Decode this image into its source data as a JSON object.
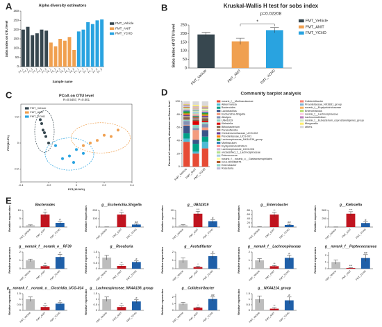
{
  "chart_data": [
    {
      "type": "bar",
      "panel_label": "A",
      "title": "Alpha diversity estimators",
      "ylabel": "Sobs index on OTU level",
      "xlabel": "Sample name",
      "categories": [
        "FV_1",
        "FV_2",
        "FV_3",
        "FV_4",
        "FV_5",
        "FV_6",
        "FA_1",
        "FA_2",
        "FA_3",
        "FA_4",
        "FA_5",
        "FA_6",
        "FY_1",
        "FY_2",
        "FY_3",
        "FY_4",
        "FY_5",
        "FY_6"
      ],
      "series": [
        {
          "name": "FMT_Vehicle",
          "color": "#37474f",
          "values": [
            200,
            215,
            170,
            180,
            200,
            195,
            null,
            null,
            null,
            null,
            null,
            null,
            null,
            null,
            null,
            null,
            null,
            null
          ]
        },
        {
          "name": "FMT_ANIT",
          "color": "#f0a050",
          "values": [
            null,
            null,
            null,
            null,
            null,
            null,
            130,
            110,
            150,
            140,
            160,
            90,
            null,
            null,
            null,
            null,
            null,
            null
          ]
        },
        {
          "name": "FMT_YCHD",
          "color": "#29a3e0",
          "values": [
            null,
            null,
            null,
            null,
            null,
            null,
            null,
            null,
            null,
            null,
            null,
            null,
            190,
            200,
            240,
            230,
            250,
            255
          ]
        }
      ],
      "ylim": [
        0,
        300
      ],
      "yticks": [
        0,
        50,
        100,
        150,
        200,
        250,
        300
      ],
      "legend": "right"
    },
    {
      "type": "bar",
      "panel_label": "B",
      "title": "Kruskal-Wallis H test for sobs index",
      "subtitle": "p=0.02208",
      "ylabel": "Sobs index of OTU level",
      "categories": [
        "FMT_Vehicle",
        "FMT_ANIT",
        "FMT_YCHD"
      ],
      "values": [
        195,
        155,
        220
      ],
      "errors": [
        12,
        18,
        15
      ],
      "colors": [
        "#37474f",
        "#f0a050",
        "#29a3e0"
      ],
      "significance": "*",
      "ylim": [
        0,
        250
      ],
      "yticks": [
        0,
        50,
        100,
        150,
        200,
        250
      ],
      "legend": "right"
    },
    {
      "type": "scatter",
      "panel_label": "C",
      "title": "PCoA on OTU level",
      "subtitle": "R=0.5457, P=0.001",
      "xlabel": "PC1(16.94%)",
      "ylabel": "PC2(12.5%)",
      "series": [
        {
          "name": "FMT_Vehicle",
          "color": "#37474f",
          "x": [
            -0.25,
            -0.24,
            -0.22,
            -0.26,
            -0.2,
            -0.23
          ],
          "y": [
            0.15,
            0.1,
            0.05,
            0.18,
            0.0,
            0.08
          ]
        },
        {
          "name": "FMT_ANIT",
          "color": "#f0a050",
          "x": [
            0.05,
            0.15,
            0.25,
            0.3,
            0.1,
            0.2
          ],
          "y": [
            -0.02,
            0.02,
            0.05,
            0.1,
            0.0,
            0.06
          ]
        },
        {
          "name": "FMT_YCHD",
          "color": "#29a3e0",
          "x": [
            -0.05,
            0.0,
            -0.1,
            0.05,
            -0.02,
            -0.15
          ],
          "y": [
            -0.1,
            -0.05,
            -0.12,
            -0.08,
            -0.15,
            -0.02
          ]
        }
      ],
      "xlim": [
        -0.4,
        0.4
      ],
      "xticks": [
        -0.4,
        -0.2,
        0,
        0.2,
        0.4
      ],
      "ylim": [
        -0.3,
        0.3
      ],
      "yticks": [
        -0.2,
        0,
        0.2
      ],
      "legend": "top-left"
    },
    {
      "type": "stacked_bar",
      "panel_label": "D",
      "title": "Community barplot analysis",
      "ylabel": "Percent of community abundance on Genus level",
      "categories": [
        "FMT_Vehicle",
        "FMT_ANIT",
        "FMT_YCHD"
      ],
      "ylim": [
        0,
        100
      ],
      "yticks": [
        0,
        20,
        40,
        60,
        80,
        100
      ],
      "series": [
        {
          "name": "norank_f__Muribaculaceae",
          "color": "#e64b35",
          "values": [
            38,
            20,
            28
          ]
        },
        {
          "name": "Akkermansia",
          "color": "#4dbbd5",
          "values": [
            5,
            3,
            10
          ]
        },
        {
          "name": "Bacteroides",
          "color": "#00a087",
          "values": [
            8,
            12,
            8
          ]
        },
        {
          "name": "Lactobacillus",
          "color": "#3c5488",
          "values": [
            12,
            6,
            10
          ]
        },
        {
          "name": "Escherichia-Shigella",
          "color": "#f39b7f",
          "values": [
            1,
            15,
            4
          ]
        },
        {
          "name": "Alistipes",
          "color": "#8491b4",
          "values": [
            6,
            3,
            5
          ]
        },
        {
          "name": "UBA1819",
          "color": "#91d1c2",
          "values": [
            2,
            5,
            3
          ]
        },
        {
          "name": "Klebsiella",
          "color": "#dc0000",
          "values": [
            0.5,
            6,
            2
          ]
        },
        {
          "name": "Bifidobacterium",
          "color": "#7e6148",
          "values": [
            3,
            2,
            4
          ]
        },
        {
          "name": "Parasutterella",
          "color": "#b09c85",
          "values": [
            2,
            2,
            2
          ]
        },
        {
          "name": "Christensenellaceae_UCG-002",
          "color": "#6a3d9a",
          "values": [
            2,
            1,
            2
          ]
        },
        {
          "name": "Prevotellaceae_UCG-001",
          "color": "#ff7f00",
          "values": [
            2,
            1,
            2
          ]
        },
        {
          "name": "Lachnospiraceae_NK4A136_group",
          "color": "#33a02c",
          "values": [
            3,
            1,
            2
          ]
        },
        {
          "name": "Muribaculum",
          "color": "#1f78b4",
          "values": [
            1.5,
            1,
            1.5
          ]
        },
        {
          "name": "Erysipelatoclostridium",
          "color": "#fb9a99",
          "values": [
            1,
            2,
            1
          ]
        },
        {
          "name": "Lachnospiraceae_UCG-006",
          "color": "#cab2d6",
          "values": [
            1,
            0.5,
            1
          ]
        },
        {
          "name": "unclassified_f__Lachnospiraceae",
          "color": "#b2df8a",
          "values": [
            1,
            1,
            1
          ]
        },
        {
          "name": "Enterococcus",
          "color": "#a6cee3",
          "values": [
            0.5,
            3,
            1
          ]
        },
        {
          "name": "norank_f__norank_o__Gastranaerophilales",
          "color": "#ffff99",
          "values": [
            1,
            0.5,
            1
          ]
        },
        {
          "name": "GCA-900066575",
          "color": "#b15928",
          "values": [
            1,
            0.5,
            0.5
          ]
        },
        {
          "name": "Enterobacter",
          "color": "#8dd3c7",
          "values": [
            0.2,
            2,
            0.5
          ]
        },
        {
          "name": "Roseburia",
          "color": "#bebada",
          "values": [
            1,
            0.5,
            0.5
          ]
        },
        {
          "name": "Colidextribacter",
          "color": "#fb8072",
          "values": [
            1,
            0.5,
            1
          ]
        },
        {
          "name": "Prevotellaceae_NK3B31_group",
          "color": "#80b1d3",
          "values": [
            1,
            0.5,
            0.5
          ]
        },
        {
          "name": "norank_f__Erysipelotrichaceae",
          "color": "#fdb462",
          "values": [
            0.5,
            1,
            0.5
          ]
        },
        {
          "name": "Enterorhabdus",
          "color": "#b3de69",
          "values": [
            0.5,
            0.5,
            0.5
          ]
        },
        {
          "name": "norank_f__Lachnospiraceae",
          "color": "#fccde5",
          "values": [
            1,
            0.5,
            0.5
          ]
        },
        {
          "name": "Lachnoclostridium",
          "color": "#bc80bd",
          "values": [
            0.5,
            1,
            0.5
          ]
        },
        {
          "name": "norank_f__Eubacterium_coprostanoligenes_group",
          "color": "#ccebc5",
          "values": [
            1,
            0.5,
            0.5
          ]
        },
        {
          "name": "Morganella",
          "color": "#ffed6f",
          "values": [
            0,
            2,
            0.5
          ]
        },
        {
          "name": "others",
          "color": "#d9d9d9",
          "values": [
            1.8,
            5.5,
            5.5
          ]
        }
      ]
    },
    {
      "type": "bar",
      "panel_label": "E",
      "title": "Bacteroides",
      "ylabel": "Relative expression",
      "categories": [
        "FMT_Vehicle",
        "FMT_ANIT",
        "FMT_YCHD"
      ],
      "values": [
        1,
        7.5,
        2.5
      ],
      "errors": [
        0.3,
        1.5,
        0.8
      ],
      "annotations": [
        null,
        "**",
        "#"
      ],
      "colors": [
        "#bdbdbd",
        "#c0141f",
        "#1f5fa8"
      ],
      "ylim": [
        0,
        10
      ],
      "yticks": [
        0,
        5,
        10
      ]
    },
    {
      "type": "bar",
      "title": "g__Escherichia-Shigella",
      "ylabel": "Relative expression",
      "categories": [
        "FMT_Vehicle",
        "FMT_ANIT",
        "FMT_YCHD"
      ],
      "values": [
        1,
        150,
        30
      ],
      "errors": [
        0.5,
        25,
        8
      ],
      "annotations": [
        null,
        "**",
        "##"
      ],
      "colors": [
        "#bdbdbd",
        "#c0141f",
        "#1f5fa8"
      ],
      "ylim": [
        0,
        200
      ],
      "yticks": [
        0,
        100,
        200
      ]
    },
    {
      "type": "bar",
      "title": "g__UBA1819",
      "ylabel": "Relative expression",
      "categories": [
        "FMT_Vehicle",
        "FMT_ANIT",
        "FMT_YCHD"
      ],
      "values": [
        1,
        8,
        3.5
      ],
      "errors": [
        0.4,
        1.5,
        1
      ],
      "annotations": [
        null,
        "***",
        "#"
      ],
      "colors": [
        "#bdbdbd",
        "#c0141f",
        "#1f5fa8"
      ],
      "ylim": [
        0,
        10
      ],
      "yticks": [
        0,
        5,
        10
      ]
    },
    {
      "type": "bar",
      "title": "g__Enterobacter",
      "ylabel": "Relative expression",
      "categories": [
        "FMT_Vehicle",
        "FMT_ANIT",
        "FMT_YCHD"
      ],
      "values": [
        1,
        60,
        10
      ],
      "errors": [
        0.3,
        10,
        3
      ],
      "annotations": [
        null,
        "**",
        "##"
      ],
      "colors": [
        "#bdbdbd",
        "#c0141f",
        "#1f5fa8"
      ],
      "ylim": [
        0,
        80
      ],
      "yticks": [
        0,
        20,
        40,
        60,
        80
      ]
    },
    {
      "type": "bar",
      "title": "g__Klebsiella",
      "ylabel": "Relative expression",
      "categories": [
        "FMT_Vehicle",
        "FMT_ANIT",
        "FMT_YCHD"
      ],
      "values": [
        1,
        400,
        120
      ],
      "errors": [
        0.5,
        60,
        40
      ],
      "annotations": [
        null,
        "***",
        "#"
      ],
      "colors": [
        "#bdbdbd",
        "#c0141f",
        "#1f5fa8"
      ],
      "ylim": [
        0,
        500
      ],
      "yticks": [
        0,
        250,
        500
      ]
    },
    {
      "type": "bar",
      "title": "g__norank_f__norank_o__RF39",
      "ylabel": "Relative expression",
      "categories": [
        "FMT_Vehicle",
        "FMT_ANIT",
        "FMT_YCHD"
      ],
      "values": [
        1,
        0.3,
        1.4
      ],
      "errors": [
        0.15,
        0.1,
        0.3
      ],
      "annotations": [
        null,
        "**",
        "#"
      ],
      "colors": [
        "#bdbdbd",
        "#c0141f",
        "#1f5fa8"
      ],
      "ylim": [
        0,
        2
      ],
      "yticks": [
        0,
        1,
        2
      ]
    },
    {
      "type": "bar",
      "title": "g__Roseburia",
      "ylabel": "Relative expression",
      "categories": [
        "FMT_Vehicle",
        "FMT_ANIT",
        "FMT_YCHD"
      ],
      "values": [
        1,
        0.25,
        0.6
      ],
      "errors": [
        0.2,
        0.1,
        0.1
      ],
      "annotations": [
        null,
        "**",
        "#"
      ],
      "colors": [
        "#bdbdbd",
        "#c0141f",
        "#1f5fa8"
      ],
      "ylim": [
        0,
        1.5
      ],
      "yticks": [
        0,
        0.5,
        1,
        1.5
      ]
    },
    {
      "type": "bar",
      "title": "g__Acetatifactor",
      "ylabel": "Relative expression",
      "categories": [
        "FMT_Vehicle",
        "FMT_ANIT",
        "FMT_YCHD"
      ],
      "values": [
        1,
        0.2,
        1.5
      ],
      "errors": [
        0.3,
        0.1,
        0.3
      ],
      "annotations": [
        null,
        "*",
        "#"
      ],
      "colors": [
        "#bdbdbd",
        "#c0141f",
        "#1f5fa8"
      ],
      "ylim": [
        0,
        2
      ],
      "yticks": [
        0,
        1,
        2
      ]
    },
    {
      "type": "bar",
      "title": "g__norank_f__Lachnospiraceae",
      "ylabel": "Relative expression",
      "categories": [
        "FMT_Vehicle",
        "FMT_ANIT",
        "FMT_YCHD"
      ],
      "values": [
        1,
        0.3,
        1.3
      ],
      "errors": [
        0.2,
        0.1,
        0.3
      ],
      "annotations": [
        null,
        "**",
        "#"
      ],
      "colors": [
        "#bdbdbd",
        "#c0141f",
        "#1f5fa8"
      ],
      "ylim": [
        0,
        2
      ],
      "yticks": [
        0,
        1,
        2
      ]
    },
    {
      "type": "bar",
      "title": "g__norank_f__Peptococcaceae",
      "ylabel": "Relative expression",
      "categories": [
        "FMT_Vehicle",
        "FMT_ANIT",
        "FMT_YCHD"
      ],
      "values": [
        1,
        0.1,
        1.6
      ],
      "errors": [
        0.3,
        0.05,
        0.5
      ],
      "annotations": [
        null,
        "***",
        "##"
      ],
      "colors": [
        "#bdbdbd",
        "#c0141f",
        "#1f5fa8"
      ],
      "ylim": [
        0,
        2.5
      ],
      "yticks": [
        0,
        1,
        2
      ]
    },
    {
      "type": "bar",
      "title": "g__norank_f__norank_o__Clostridia_UCG-014",
      "ylabel": "Relative expression",
      "categories": [
        "FMT_Vehicle",
        "FMT_ANIT",
        "FMT_YCHD"
      ],
      "values": [
        1,
        0.3,
        0.6
      ],
      "errors": [
        0.2,
        0.1,
        0.1
      ],
      "annotations": [
        null,
        "**",
        "#"
      ],
      "colors": [
        "#bdbdbd",
        "#c0141f",
        "#1f5fa8"
      ],
      "ylim": [
        0,
        1.5
      ],
      "yticks": [
        0,
        0.5,
        1,
        1.5
      ]
    },
    {
      "type": "bar",
      "title": "g__Lachnospiraceae_NK4A136_group",
      "ylabel": "Relative expression",
      "categories": [
        "FMT_Vehicle",
        "FMT_ANIT",
        "FMT_YCHD"
      ],
      "values": [
        1,
        0.3,
        0.8
      ],
      "errors": [
        0.2,
        0.1,
        0.15
      ],
      "annotations": [
        null,
        "**",
        "#"
      ],
      "colors": [
        "#bdbdbd",
        "#c0141f",
        "#1f5fa8"
      ],
      "ylim": [
        0,
        1.5
      ],
      "yticks": [
        0,
        0.5,
        1,
        1.5
      ]
    },
    {
      "type": "bar",
      "title": "g__Colidextribacter",
      "ylabel": "Relative expression",
      "categories": [
        "FMT_Vehicle",
        "FMT_ANIT",
        "FMT_YCHD"
      ],
      "values": [
        1,
        0.4,
        1.7
      ],
      "errors": [
        0.2,
        0.1,
        0.3
      ],
      "annotations": [
        null,
        "*",
        "##"
      ],
      "colors": [
        "#bdbdbd",
        "#c0141f",
        "#1f5fa8"
      ],
      "ylim": [
        0,
        2.5
      ],
      "yticks": [
        0,
        1,
        2
      ]
    },
    {
      "type": "bar",
      "title": "g__NK4A214_group",
      "ylabel": "Relative expression",
      "categories": [
        "FMT_Vehicle",
        "FMT_ANIT",
        "FMT_YCHD"
      ],
      "values": [
        1,
        0.15,
        0.9
      ],
      "errors": [
        0.3,
        0.1,
        0.3
      ],
      "annotations": [
        null,
        "**",
        "#"
      ],
      "colors": [
        "#bdbdbd",
        "#c0141f",
        "#1f5fa8"
      ],
      "ylim": [
        0,
        1.5
      ],
      "yticks": [
        0,
        0.5,
        1,
        1.5
      ]
    }
  ]
}
